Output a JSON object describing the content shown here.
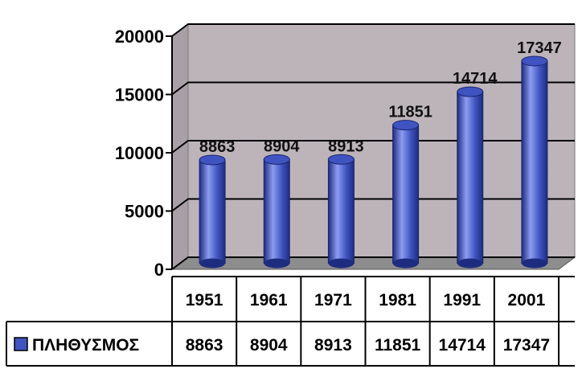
{
  "chart_data": {
    "type": "bar",
    "categories": [
      "1951",
      "1961",
      "1971",
      "1981",
      "1991",
      "2001"
    ],
    "series": [
      {
        "name": "ΠΛΗΘΥΣΜΟΣ",
        "values": [
          8863,
          8904,
          8913,
          11851,
          14714,
          17347
        ]
      }
    ],
    "ylim": [
      0,
      20000
    ],
    "yticks": [
      0,
      5000,
      10000,
      15000,
      20000
    ],
    "grid": true,
    "style": "3d-cylinder",
    "legend": "data-table-left",
    "colors": {
      "bar": "#3f54c0",
      "bar_dark": "#1e2c80",
      "bar_light": "#8c9cf0",
      "wall": "#bdb4ba",
      "floor": "#8d8d8d",
      "legend_key": "#3f54c0"
    }
  }
}
